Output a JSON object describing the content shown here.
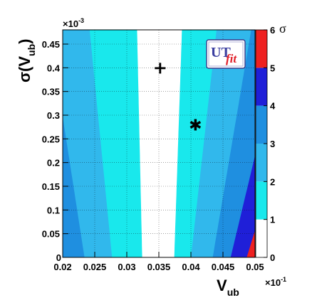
{
  "chart_data": {
    "type": "heatmap",
    "title": "",
    "xlabel": "V",
    "xlabel_sub": "ub",
    "x_multiplier": "×10",
    "x_multiplier_exp": "-1",
    "ylabel": "σ(V",
    "ylabel_sub": "ub",
    "ylabel_close": ")",
    "y_multiplier": "×10",
    "y_multiplier_exp": "-3",
    "xlim": [
      0.02,
      0.05
    ],
    "ylim": [
      0,
      0.48
    ],
    "x_ticks": [
      {
        "value": 0.02,
        "label": "0.02"
      },
      {
        "value": 0.025,
        "label": "0.025"
      },
      {
        "value": 0.03,
        "label": "0.03"
      },
      {
        "value": 0.035,
        "label": "0.035"
      },
      {
        "value": 0.04,
        "label": "0.04"
      },
      {
        "value": 0.045,
        "label": "0.045"
      },
      {
        "value": 0.05,
        "label": "0.05"
      }
    ],
    "y_ticks": [
      {
        "value": 0.05,
        "label": "0.05"
      },
      {
        "value": 0.1,
        "label": "0.1"
      },
      {
        "value": 0.15,
        "label": "0.15"
      },
      {
        "value": 0.2,
        "label": "0.2"
      },
      {
        "value": 0.25,
        "label": "0.25"
      },
      {
        "value": 0.3,
        "label": "0.3"
      },
      {
        "value": 0.35,
        "label": "0.35"
      },
      {
        "value": 0.4,
        "label": "0.4"
      },
      {
        "value": 0.45,
        "label": "0.45"
      }
    ],
    "y_origin_label": "0",
    "grid": true,
    "contour_center_x": 0.0352,
    "levels": [
      {
        "name": "0-1",
        "color": "#ffffff"
      },
      {
        "name": "1-2",
        "color": "#19e8ec"
      },
      {
        "name": "2-3",
        "color": "#31b8ec"
      },
      {
        "name": "3-4",
        "color": "#1f8fe0"
      },
      {
        "name": "4-5",
        "color": "#1f1fd8"
      },
      {
        "name": "5-6",
        "color": "#ee2020"
      }
    ],
    "colorbar": {
      "title": "σ",
      "range": [
        0,
        6
      ],
      "ticks": [
        "0",
        "1",
        "2",
        "3",
        "4",
        "5",
        "6"
      ]
    },
    "markers": [
      {
        "symbol": "+",
        "x": 0.0352,
        "y": 0.4
      },
      {
        "symbol": "✱",
        "x": 0.0407,
        "y": 0.28
      }
    ],
    "logo": {
      "main": "UT",
      "sub": "fit"
    }
  }
}
